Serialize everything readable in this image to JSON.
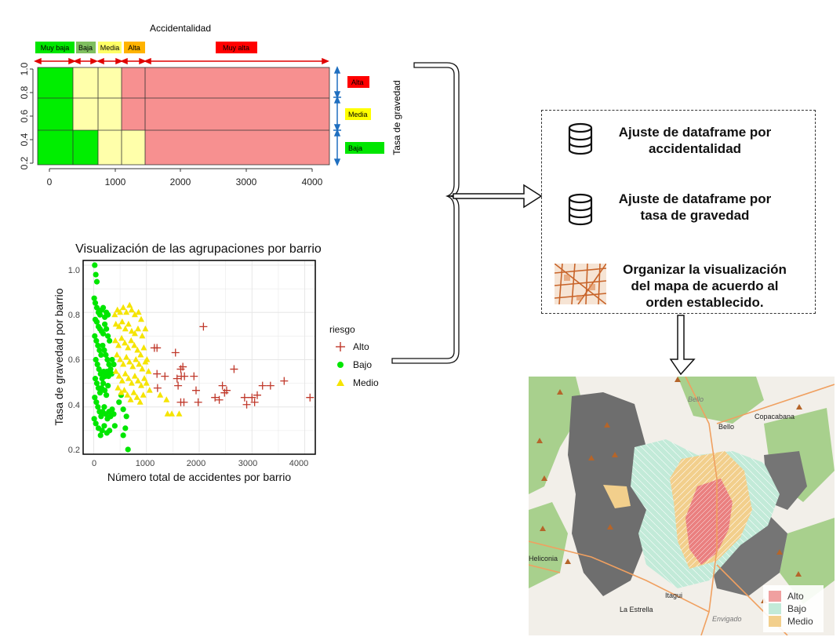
{
  "top_chart": {
    "title": "Accidentalidad",
    "ylabel": "Tasa de gravedad",
    "x_ticks": [
      "0",
      "1000",
      "2000",
      "3000",
      "4000"
    ],
    "y_ticks": [
      "0.2",
      "0.4",
      "0.6",
      "0.8",
      "1.0"
    ],
    "x_categories": [
      "Muy baja",
      "Baja",
      "Media",
      "Alta",
      "Muy alta"
    ],
    "y_categories": [
      "Alta",
      "Media",
      "Baja"
    ],
    "colors": {
      "muy_baja": "#00e600",
      "baja": "#7fbf5f",
      "media": "#ffff66",
      "alta": "#ffb300",
      "muy_alta": "#ff0000",
      "red_region": "#f79090",
      "yellow_region": "#ffffaa",
      "green_region": "#00ee00",
      "arrow_red": "#e00000",
      "arrow_blue": "#1f6fc0"
    }
  },
  "scatter": {
    "title": "Visualización de las agrupaciones por barrio",
    "xlabel": "Número total de accidentes por barrio",
    "ylabel": "Tasa de gravedad por barrio",
    "legend_title": "riesgo",
    "legend": [
      "Alto",
      "Bajo",
      "Medio"
    ],
    "x_ticks": [
      "0",
      "1000",
      "2000",
      "3000",
      "4000"
    ],
    "y_ticks": [
      "0.2",
      "0.4",
      "0.6",
      "0.8",
      "1.0"
    ]
  },
  "chart_data": {
    "type": "scatter",
    "title": "Visualización de las agrupaciones por barrio",
    "xlabel": "Número total de accidentes por barrio",
    "ylabel": "Tasa de gravedad por barrio",
    "xlim": [
      -200,
      4200
    ],
    "ylim": [
      0.2,
      1.02
    ],
    "legend_title": "riesgo",
    "series": [
      {
        "name": "Alto",
        "marker": "plus",
        "color": "#c0392b",
        "points": [
          [
            1150,
            0.65
          ],
          [
            1200,
            0.65
          ],
          [
            2080,
            0.74
          ],
          [
            1550,
            0.63
          ],
          [
            2660,
            0.56
          ],
          [
            1200,
            0.54
          ],
          [
            1350,
            0.53
          ],
          [
            1580,
            0.52
          ],
          [
            1650,
            0.56
          ],
          [
            1690,
            0.57
          ],
          [
            1660,
            0.53
          ],
          [
            1720,
            0.53
          ],
          [
            1900,
            0.53
          ],
          [
            1600,
            0.49
          ],
          [
            1210,
            0.48
          ],
          [
            1940,
            0.47
          ],
          [
            2440,
            0.49
          ],
          [
            2480,
            0.46
          ],
          [
            2520,
            0.47
          ],
          [
            2860,
            0.44
          ],
          [
            3000,
            0.44
          ],
          [
            3100,
            0.45
          ],
          [
            3200,
            0.49
          ],
          [
            3350,
            0.49
          ],
          [
            3610,
            0.51
          ],
          [
            4100,
            0.44
          ],
          [
            1650,
            0.42
          ],
          [
            1710,
            0.42
          ],
          [
            1980,
            0.42
          ],
          [
            2300,
            0.44
          ],
          [
            2380,
            0.43
          ],
          [
            2900,
            0.41
          ],
          [
            3050,
            0.42
          ]
        ]
      },
      {
        "name": "Bajo",
        "marker": "circle",
        "color": "#00e600",
        "points": [
          [
            20,
            1.0
          ],
          [
            40,
            0.96
          ],
          [
            60,
            0.93
          ],
          [
            10,
            0.86
          ],
          [
            30,
            0.84
          ],
          [
            60,
            0.82
          ],
          [
            90,
            0.8
          ],
          [
            120,
            0.79
          ],
          [
            150,
            0.81
          ],
          [
            180,
            0.82
          ],
          [
            210,
            0.78
          ],
          [
            240,
            0.8
          ],
          [
            270,
            0.79
          ],
          [
            30,
            0.77
          ],
          [
            60,
            0.76
          ],
          [
            90,
            0.74
          ],
          [
            120,
            0.73
          ],
          [
            150,
            0.72
          ],
          [
            180,
            0.71
          ],
          [
            210,
            0.75
          ],
          [
            240,
            0.73
          ],
          [
            270,
            0.7
          ],
          [
            300,
            0.68
          ],
          [
            20,
            0.7
          ],
          [
            50,
            0.68
          ],
          [
            80,
            0.66
          ],
          [
            110,
            0.64
          ],
          [
            140,
            0.62
          ],
          [
            170,
            0.66
          ],
          [
            200,
            0.64
          ],
          [
            230,
            0.62
          ],
          [
            260,
            0.6
          ],
          [
            290,
            0.58
          ],
          [
            320,
            0.56
          ],
          [
            350,
            0.6
          ],
          [
            380,
            0.58
          ],
          [
            40,
            0.6
          ],
          [
            70,
            0.58
          ],
          [
            100,
            0.56
          ],
          [
            130,
            0.54
          ],
          [
            160,
            0.52
          ],
          [
            190,
            0.55
          ],
          [
            220,
            0.53
          ],
          [
            250,
            0.55
          ],
          [
            280,
            0.53
          ],
          [
            310,
            0.55
          ],
          [
            340,
            0.54
          ],
          [
            30,
            0.52
          ],
          [
            60,
            0.5
          ],
          [
            90,
            0.48
          ],
          [
            120,
            0.46
          ],
          [
            150,
            0.48
          ],
          [
            180,
            0.5
          ],
          [
            210,
            0.47
          ],
          [
            240,
            0.45
          ],
          [
            270,
            0.49
          ],
          [
            20,
            0.44
          ],
          [
            50,
            0.42
          ],
          [
            80,
            0.4
          ],
          [
            110,
            0.38
          ],
          [
            140,
            0.36
          ],
          [
            170,
            0.38
          ],
          [
            200,
            0.4
          ],
          [
            230,
            0.37
          ],
          [
            260,
            0.35
          ],
          [
            290,
            0.38
          ],
          [
            320,
            0.36
          ],
          [
            350,
            0.39
          ],
          [
            380,
            0.37
          ],
          [
            10,
            0.35
          ],
          [
            40,
            0.33
          ],
          [
            90,
            0.31
          ],
          [
            130,
            0.28
          ],
          [
            160,
            0.3
          ],
          [
            200,
            0.32
          ],
          [
            250,
            0.29
          ],
          [
            300,
            0.3
          ],
          [
            400,
            0.32
          ],
          [
            480,
            0.42
          ],
          [
            520,
            0.45
          ],
          [
            560,
            0.39
          ],
          [
            600,
            0.31
          ],
          [
            620,
            0.36
          ],
          [
            650,
            0.22
          ],
          [
            560,
            0.28
          ]
        ]
      },
      {
        "name": "Medio",
        "marker": "triangle",
        "color": "#f5e400",
        "points": [
          [
            400,
            0.79
          ],
          [
            450,
            0.81
          ],
          [
            500,
            0.8
          ],
          [
            560,
            0.82
          ],
          [
            620,
            0.8
          ],
          [
            680,
            0.83
          ],
          [
            720,
            0.81
          ],
          [
            780,
            0.79
          ],
          [
            850,
            0.8
          ],
          [
            900,
            0.77
          ],
          [
            420,
            0.75
          ],
          [
            480,
            0.74
          ],
          [
            540,
            0.76
          ],
          [
            600,
            0.73
          ],
          [
            660,
            0.75
          ],
          [
            720,
            0.72
          ],
          [
            780,
            0.71
          ],
          [
            840,
            0.73
          ],
          [
            920,
            0.7
          ],
          [
            980,
            0.73
          ],
          [
            410,
            0.68
          ],
          [
            470,
            0.66
          ],
          [
            530,
            0.69
          ],
          [
            590,
            0.67
          ],
          [
            650,
            0.65
          ],
          [
            710,
            0.68
          ],
          [
            770,
            0.66
          ],
          [
            830,
            0.64
          ],
          [
            890,
            0.62
          ],
          [
            950,
            0.65
          ],
          [
            1010,
            0.6
          ],
          [
            440,
            0.62
          ],
          [
            500,
            0.6
          ],
          [
            560,
            0.58
          ],
          [
            620,
            0.61
          ],
          [
            680,
            0.59
          ],
          [
            740,
            0.57
          ],
          [
            800,
            0.6
          ],
          [
            860,
            0.58
          ],
          [
            920,
            0.56
          ],
          [
            980,
            0.59
          ],
          [
            1040,
            0.55
          ],
          [
            420,
            0.55
          ],
          [
            480,
            0.53
          ],
          [
            540,
            0.51
          ],
          [
            600,
            0.54
          ],
          [
            660,
            0.52
          ],
          [
            720,
            0.5
          ],
          [
            780,
            0.53
          ],
          [
            840,
            0.51
          ],
          [
            900,
            0.49
          ],
          [
            960,
            0.52
          ],
          [
            460,
            0.48
          ],
          [
            520,
            0.46
          ],
          [
            580,
            0.47
          ],
          [
            640,
            0.45
          ],
          [
            700,
            0.43
          ],
          [
            760,
            0.46
          ],
          [
            820,
            0.44
          ],
          [
            880,
            0.42
          ],
          [
            940,
            0.45
          ],
          [
            1260,
            0.45
          ],
          [
            1380,
            0.43
          ],
          [
            1400,
            0.37
          ],
          [
            1480,
            0.37
          ],
          [
            1620,
            0.37
          ],
          [
            1000,
            0.5
          ],
          [
            1060,
            0.47
          ]
        ]
      }
    ]
  },
  "steps": {
    "step1": [
      "Ajuste de dataframe por",
      "accidentalidad"
    ],
    "step2": [
      "Ajuste de dataframe por",
      "tasa de gravedad"
    ],
    "step3": [
      "Organizar la visualización",
      "del mapa de acuerdo al",
      "orden establecido."
    ]
  },
  "map": {
    "places": [
      "Bello",
      "Bello",
      "Copacabana",
      "Heliconia",
      "Itagui",
      "La Estrella",
      "Envigado"
    ],
    "legend": [
      "Alto",
      "Bajo",
      "Medio"
    ],
    "colors": {
      "alto": "#f0a0a0",
      "bajo": "#c2ead8",
      "medio": "#f2cf8c",
      "grey": "#6e6e6e",
      "green": "#a8d08d",
      "road": "#f0a060",
      "land": "#f2efe9"
    }
  }
}
